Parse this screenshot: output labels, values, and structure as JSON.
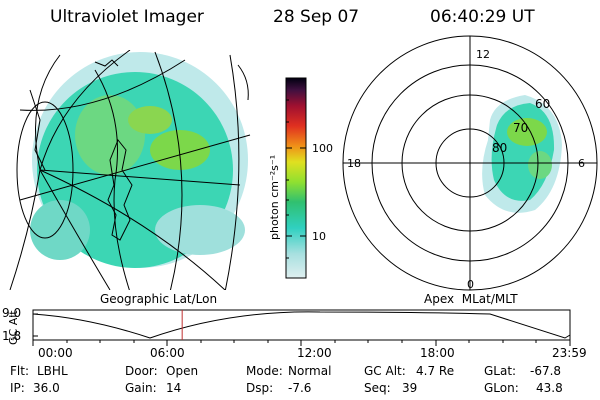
{
  "header": {
    "title": "Ultraviolet Imager",
    "date": "28 Sep 07",
    "time": "06:40:29 UT"
  },
  "colorbar": {
    "unit_label": "photon cm⁻²s⁻¹",
    "ticks": [
      "100",
      "10"
    ]
  },
  "geo_panel": {
    "caption": "Geographic Lat/Lon"
  },
  "polar_panel": {
    "caption": "Apex  MLat/MLT",
    "mlt_labels": [
      "12",
      "18",
      "6",
      "0"
    ],
    "lat_labels": [
      "60",
      "70",
      "80"
    ]
  },
  "altitude_plot": {
    "ylabel": "GC Alt",
    "y_ticks": [
      "9.0",
      "1.8"
    ],
    "x_ticks": [
      "00:00",
      "06:00",
      "12:00",
      "18:00",
      "23:59"
    ],
    "cursor_time": "06:40"
  },
  "info": {
    "flt_label": "Flt:",
    "flt_value": "LBHL",
    "ip_label": "IP:",
    "ip_value": "36.0",
    "door_label": "Door:",
    "door_value": "Open",
    "gain_label": "Gain:",
    "gain_value": "14",
    "mode_label": "Mode:",
    "mode_value": "Normal",
    "dsp_label": "Dsp:",
    "dsp_value": "-7.6",
    "gcalt_label": "GC Alt:",
    "gcalt_value": "4.7 Re",
    "seq_label": "Seq:",
    "seq_value": "39",
    "glat_label": "GLat:",
    "glat_value": "-67.8",
    "glon_label": "GLon:",
    "glon_value": "43.8"
  },
  "colors": {
    "emission_main": "#3cd6b4",
    "emission_low": "#bfe9ea",
    "emission_high": "#7cd84a",
    "cursor": "#c03030"
  }
}
